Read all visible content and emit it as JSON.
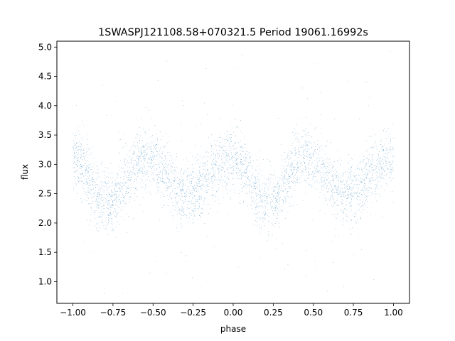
{
  "chart_data": {
    "type": "scatter",
    "title": "1SWASPJ121108.58+070321.5 Period 19061.16992s",
    "xlabel": "phase",
    "ylabel": "flux",
    "xlim": [
      -1.1,
      1.1
    ],
    "ylim": [
      0.63,
      5.1
    ],
    "x_ticks": [
      -1.0,
      -0.75,
      -0.5,
      -0.25,
      0.0,
      0.25,
      0.5,
      0.75,
      1.0
    ],
    "x_tick_labels": [
      "−1.00",
      "−0.75",
      "−0.50",
      "−0.25",
      "0.00",
      "0.25",
      "0.50",
      "0.75",
      "1.00"
    ],
    "y_ticks": [
      1.0,
      1.5,
      2.0,
      2.5,
      3.0,
      3.5,
      4.0,
      4.5,
      5.0
    ],
    "y_tick_labels": [
      "1.0",
      "1.5",
      "2.0",
      "2.5",
      "3.0",
      "3.5",
      "4.0",
      "4.5",
      "5.0"
    ],
    "grid": false,
    "marker_color": "#1f77b4",
    "series": [
      {
        "phase_range": [
          -1.0,
          1.0
        ],
        "profile": {
          "phase": [
            0.0,
            0.2,
            0.45,
            0.7,
            1.0
          ],
          "flux": [
            3.1,
            2.35,
            3.1,
            2.5,
            3.1
          ]
        },
        "scatter_sigma": 0.27,
        "point_count": 40000
      }
    ]
  }
}
